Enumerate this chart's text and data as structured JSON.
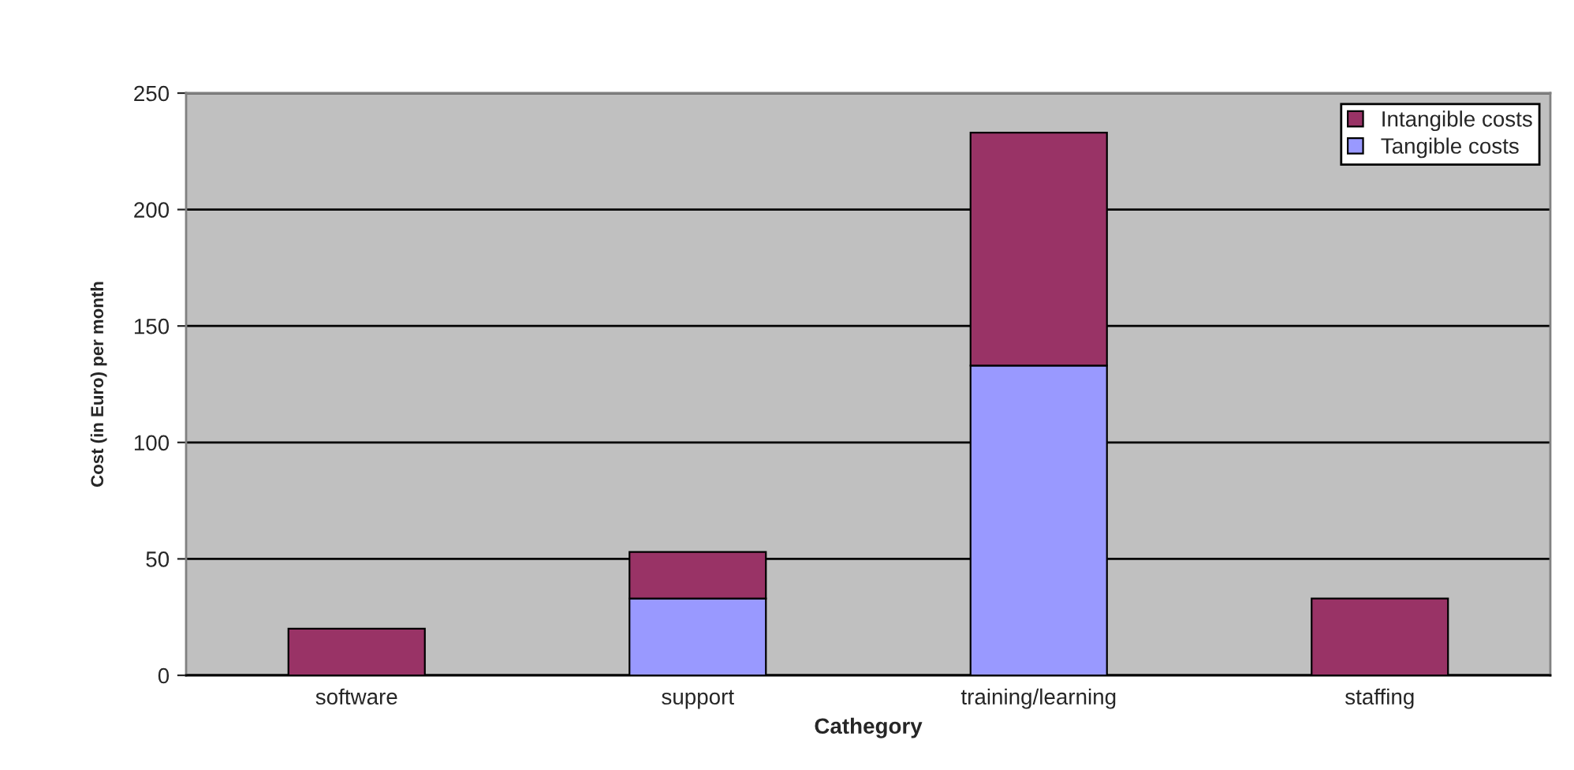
{
  "chart_data": {
    "type": "bar",
    "stacked": true,
    "xlabel": "Cathegory",
    "ylabel": "Cost (in Euro) per month",
    "categories": [
      "software",
      "support",
      "training/learning",
      "staffing"
    ],
    "series": [
      {
        "name": "Tangible costs",
        "color": "#9999ff",
        "values": [
          0,
          33,
          133,
          0
        ]
      },
      {
        "name": "Intangible costs",
        "color": "#993366",
        "values": [
          20,
          20,
          100,
          33
        ]
      }
    ],
    "ylim": [
      0,
      250
    ],
    "yticks": [
      0,
      50,
      100,
      150,
      200,
      250
    ],
    "grid": "y",
    "legend": "top right"
  }
}
